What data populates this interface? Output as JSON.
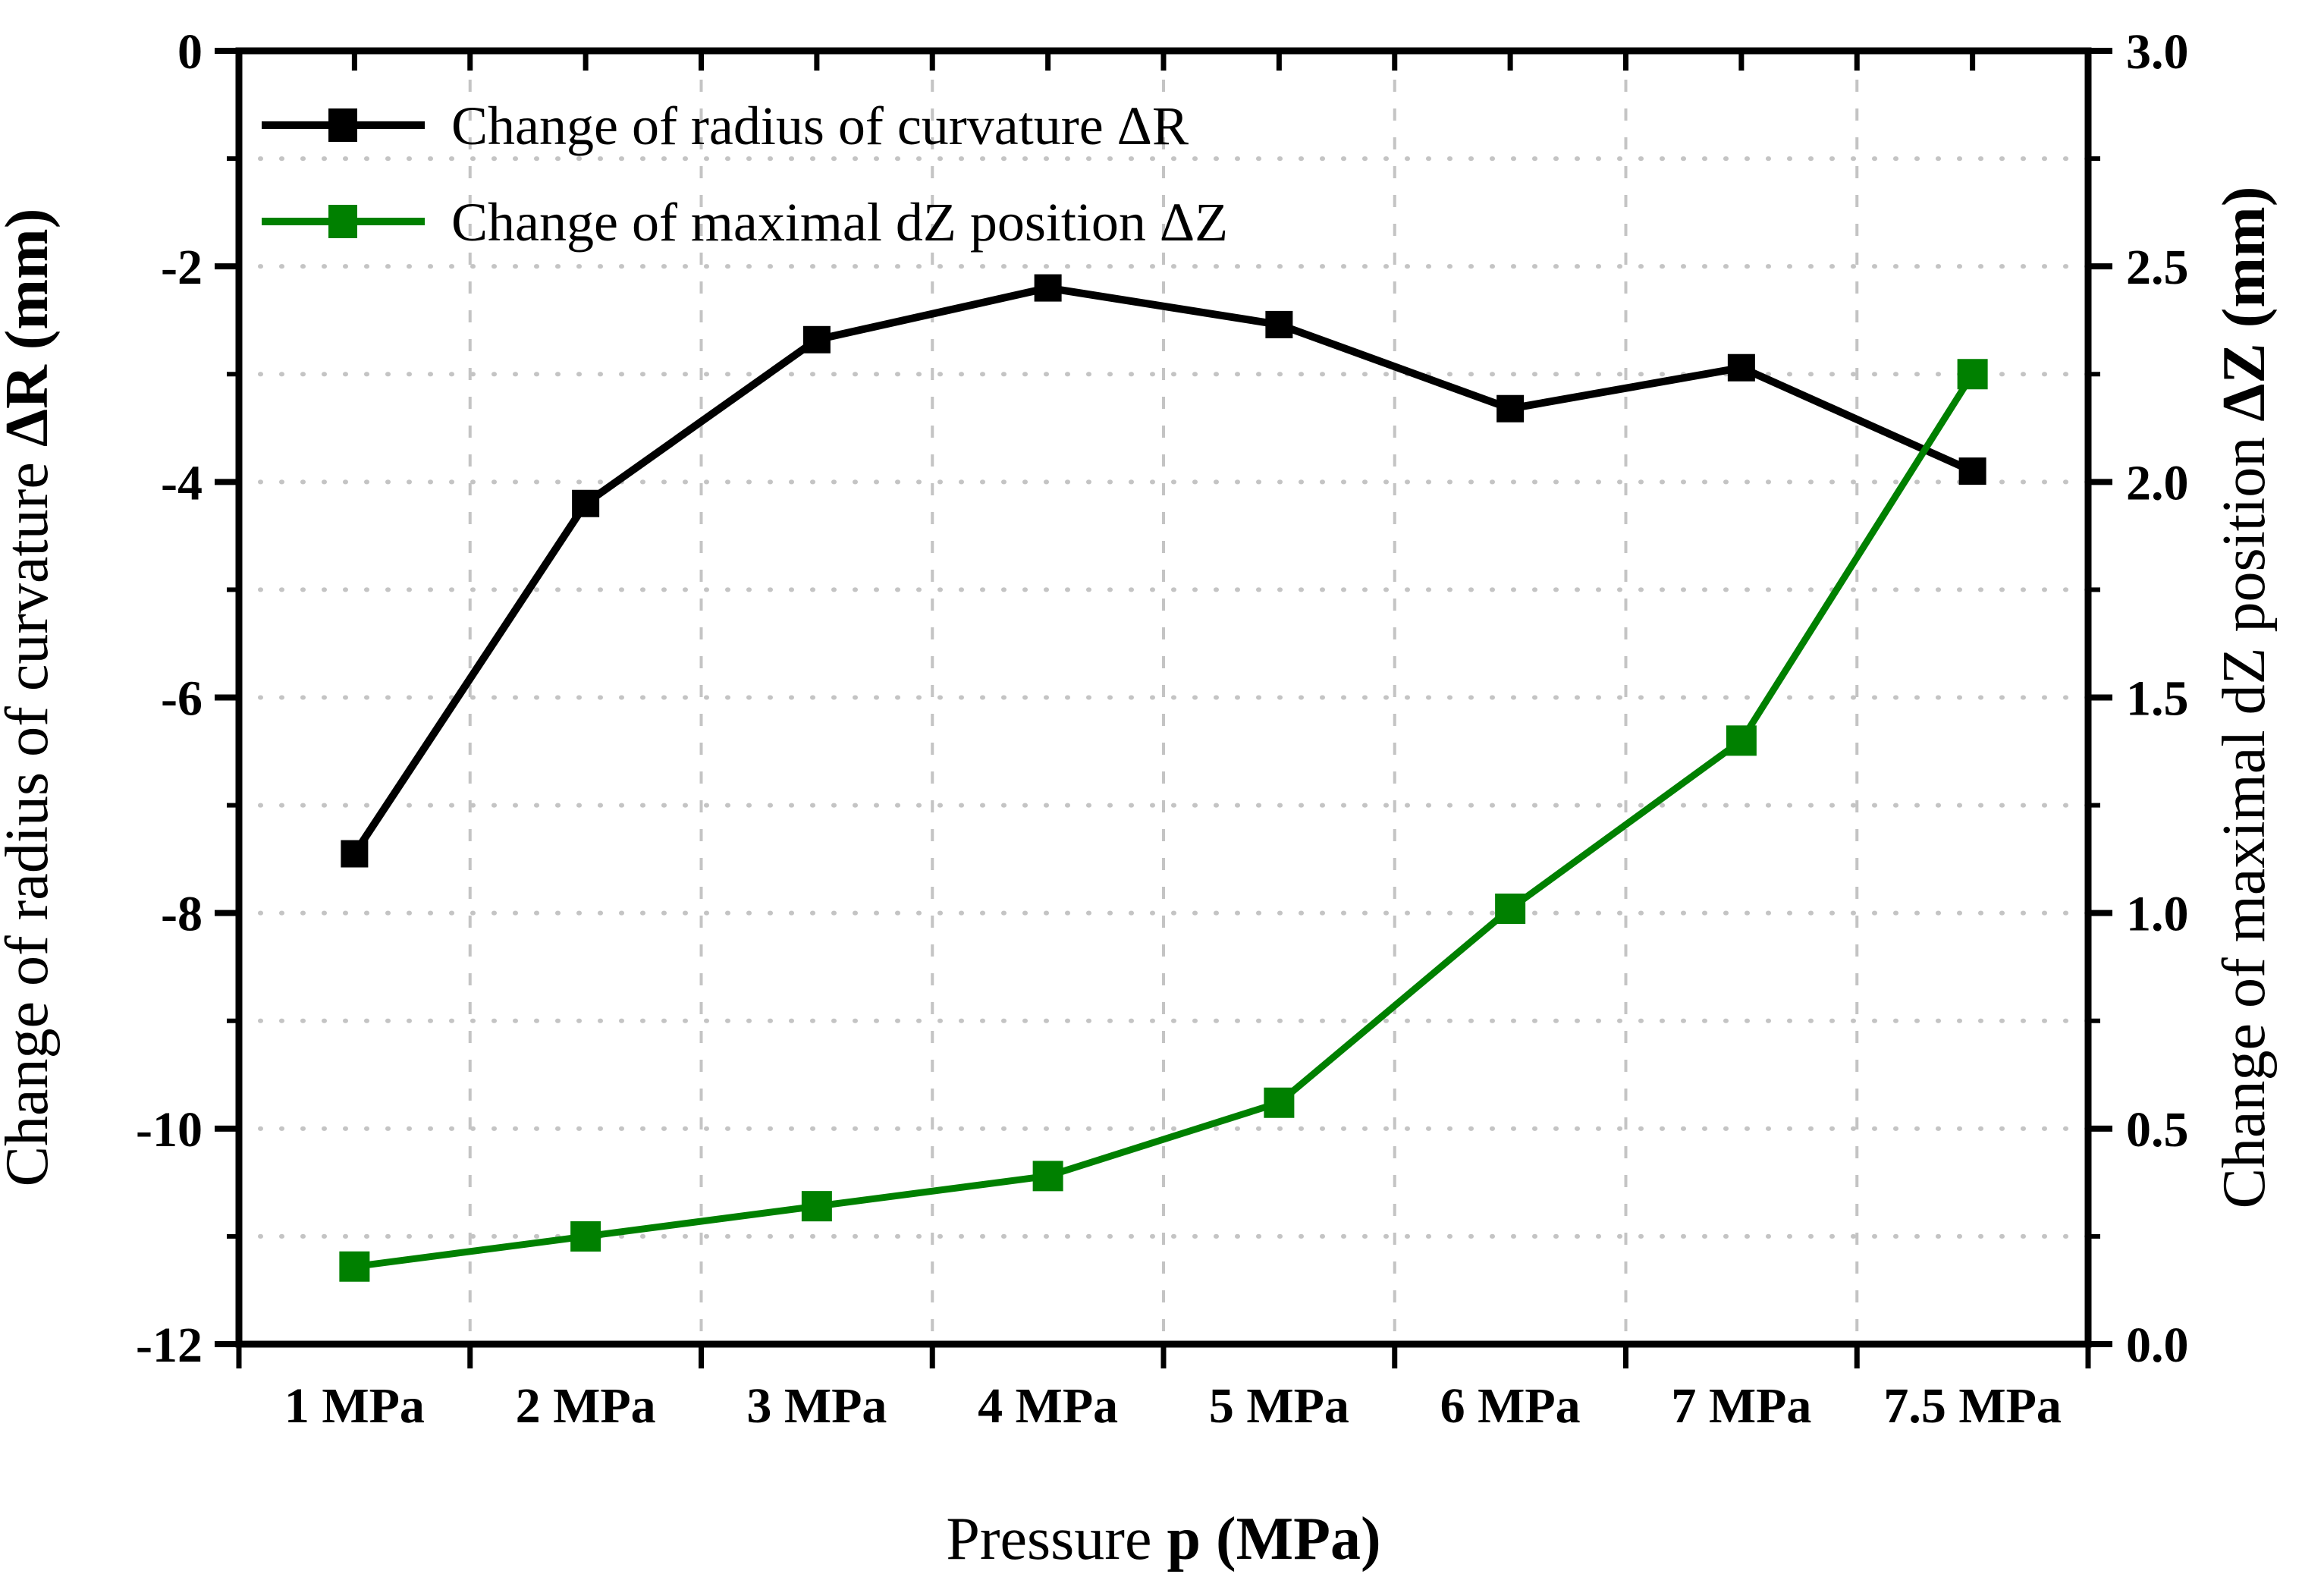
{
  "chart_data": {
    "type": "line",
    "categories": [
      "1 MPa",
      "2 MPa",
      "3 MPa",
      "4 MPa",
      "5 MPa",
      "6 MPa",
      "7 MPa",
      "7.5 MPa"
    ],
    "series": [
      {
        "name": "Change of radius of curvature ΔR",
        "axis": "left",
        "color": "#000000",
        "marker": "square",
        "values": [
          -7.45,
          -4.2,
          -2.68,
          -2.2,
          -2.54,
          -3.32,
          -2.94,
          -3.9
        ]
      },
      {
        "name": "Change of maximal dZ position ΔZ",
        "axis": "right",
        "color": "#008000",
        "marker": "square",
        "values": [
          0.18,
          0.25,
          0.32,
          0.39,
          0.56,
          1.01,
          1.4,
          2.25
        ]
      }
    ],
    "left_axis": {
      "label_normal": "Change of radius of curvature ",
      "label_bold": "ΔR (mm)",
      "min": -12,
      "max": 0,
      "major_step": 2,
      "minor_step": 1,
      "tick_labels": [
        "0",
        "-2",
        "-4",
        "-6",
        "-8",
        "-10",
        "-12"
      ]
    },
    "right_axis": {
      "label_normal": "Change of maximal dZ position ",
      "label_bold": "ΔZ (mm)",
      "min": 0.0,
      "max": 3.0,
      "major_step": 0.5,
      "minor_step": 0.25,
      "tick_labels": [
        "3.0",
        "2.5",
        "2.0",
        "1.5",
        "1.0",
        "0.5",
        "0.0"
      ]
    },
    "x_axis": {
      "label_normal": "Pressure ",
      "label_bold": "p (MPa)",
      "tick_labels": [
        "1 MPa",
        "2 MPa",
        "3 MPa",
        "4 MPa",
        "5 MPa",
        "6 MPa",
        "7 MPa",
        "7.5 MPa"
      ]
    },
    "legend": {
      "position": "top-left-inside",
      "entries": [
        {
          "label": "Change of radius of curvature ΔR",
          "color": "#000000"
        },
        {
          "label": "Change of maximal dZ position ΔZ",
          "color": "#008000"
        }
      ]
    },
    "grid": {
      "horizontal": "dotted",
      "vertical": "dashed",
      "color": "#c4c4c4"
    }
  },
  "colors": {
    "frame": "#000000",
    "series_black": "#000000",
    "series_green": "#008000",
    "grid": "#c4c4c4",
    "background": "#ffffff"
  }
}
